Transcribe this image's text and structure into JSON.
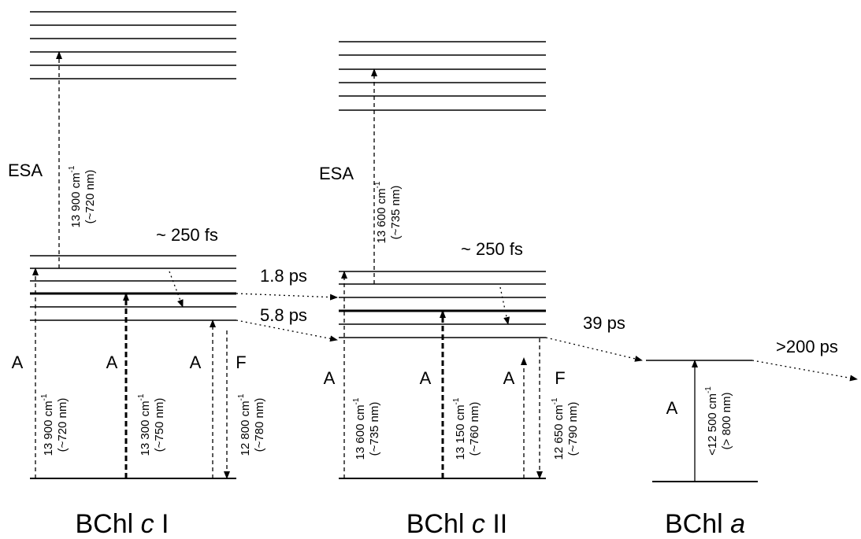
{
  "systems": [
    {
      "name": {
        "prefix": "BChl ",
        "italic": "c",
        "suffix": " I"
      },
      "esa": "ESA",
      "esa_transition": {
        "value": "13 900 cm",
        "sup": "-1",
        "nm": "(~720 nm)"
      },
      "relaxation": "~ 250 fs",
      "absorption": [
        "A",
        "A",
        "A"
      ],
      "fluorescence": "F",
      "transitions": [
        {
          "value": "13 900 cm",
          "sup": "-1",
          "nm": "(~720 nm)"
        },
        {
          "value": "13 300 cm",
          "sup": "-1",
          "nm": "(~750 nm)"
        },
        {
          "value": "12 800 cm",
          "sup": "-1",
          "nm": "(~780 nm)"
        }
      ]
    },
    {
      "name": {
        "prefix": "BChl ",
        "italic": "c",
        "suffix": " II"
      },
      "esa": "ESA",
      "esa_transition": {
        "value": "13 600 cm",
        "sup": "-1",
        "nm": "(~735 nm)"
      },
      "relaxation": "~ 250 fs",
      "absorption": [
        "A",
        "A",
        "A"
      ],
      "fluorescence": "F",
      "transitions": [
        {
          "value": "13 600 cm",
          "sup": "-1",
          "nm": "(~735 nm)"
        },
        {
          "value": "13 150 cm",
          "sup": "-1",
          "nm": "(~760 nm)"
        },
        {
          "value": "12 650 cm",
          "sup": "-1",
          "nm": "(~790 nm)"
        }
      ]
    },
    {
      "name": {
        "prefix": "BChl ",
        "italic": "a"
      },
      "absorption": [
        "A"
      ],
      "transitions": [
        {
          "value": "<12 500 cm",
          "sup": "-1",
          "nm": "(> 800 nm)"
        }
      ]
    }
  ],
  "transfers": [
    "1.8 ps",
    "5.8 ps",
    "39 ps",
    ">200 ps"
  ]
}
